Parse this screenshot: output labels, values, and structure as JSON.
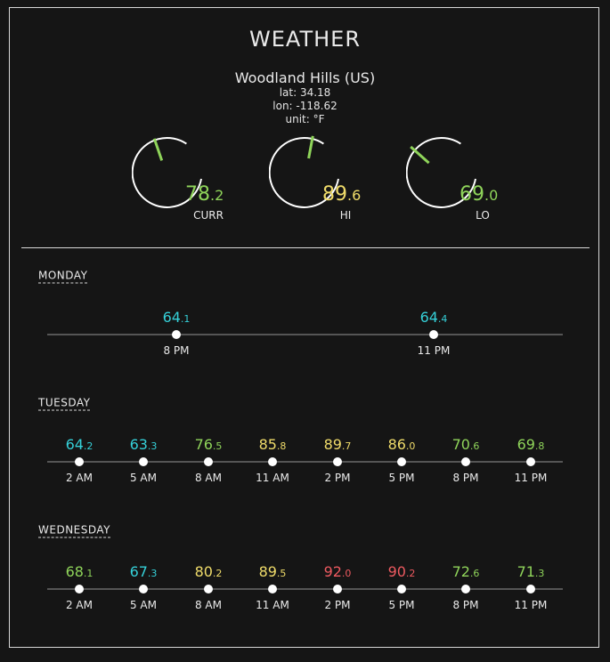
{
  "header": {
    "title": "WEATHER"
  },
  "location": {
    "city": "Woodland Hills (US)",
    "lat": "lat: 34.18",
    "lon": "lon: -118.62",
    "unit": "unit: °F"
  },
  "colors": {
    "cold": "#35d0d8",
    "mild": "#8fd45a",
    "warm": "#f0dc6a",
    "hot": "#ee5a60",
    "gauge_needle": "#8fd45a"
  },
  "gauges": [
    {
      "label": "CURR",
      "int": "78",
      "dec": ".2",
      "color": "#8fd45a"
    },
    {
      "label": "HI",
      "int": "89",
      "dec": ".6",
      "color": "#f0dc6a"
    },
    {
      "label": "LO",
      "int": "69",
      "dec": ".0",
      "color": "#8fd45a"
    }
  ],
  "days": [
    {
      "label": "MONDAY",
      "points": [
        {
          "time": "8 PM",
          "int": "64",
          "dec": ".1",
          "color": "#35d0d8"
        },
        {
          "time": "11 PM",
          "int": "64",
          "dec": ".4",
          "color": "#35d0d8"
        }
      ]
    },
    {
      "label": "TUESDAY",
      "points": [
        {
          "time": "2 AM",
          "int": "64",
          "dec": ".2",
          "color": "#35d0d8"
        },
        {
          "time": "5 AM",
          "int": "63",
          "dec": ".3",
          "color": "#35d0d8"
        },
        {
          "time": "8 AM",
          "int": "76",
          "dec": ".5",
          "color": "#8fd45a"
        },
        {
          "time": "11 AM",
          "int": "85",
          "dec": ".8",
          "color": "#f0dc6a"
        },
        {
          "time": "2 PM",
          "int": "89",
          "dec": ".7",
          "color": "#f0dc6a"
        },
        {
          "time": "5 PM",
          "int": "86",
          "dec": ".0",
          "color": "#f0dc6a"
        },
        {
          "time": "8 PM",
          "int": "70",
          "dec": ".6",
          "color": "#8fd45a"
        },
        {
          "time": "11 PM",
          "int": "69",
          "dec": ".8",
          "color": "#8fd45a"
        }
      ]
    },
    {
      "label": "WEDNESDAY",
      "points": [
        {
          "time": "2 AM",
          "int": "68",
          "dec": ".1",
          "color": "#8fd45a"
        },
        {
          "time": "5 AM",
          "int": "67",
          "dec": ".3",
          "color": "#35d0d8"
        },
        {
          "time": "8 AM",
          "int": "80",
          "dec": ".2",
          "color": "#f0dc6a"
        },
        {
          "time": "11 AM",
          "int": "89",
          "dec": ".5",
          "color": "#f0dc6a"
        },
        {
          "time": "2 PM",
          "int": "92",
          "dec": ".0",
          "color": "#ee5a60"
        },
        {
          "time": "5 PM",
          "int": "90",
          "dec": ".2",
          "color": "#ee5a60"
        },
        {
          "time": "8 PM",
          "int": "72",
          "dec": ".6",
          "color": "#8fd45a"
        },
        {
          "time": "11 PM",
          "int": "71",
          "dec": ".3",
          "color": "#8fd45a"
        }
      ]
    }
  ]
}
